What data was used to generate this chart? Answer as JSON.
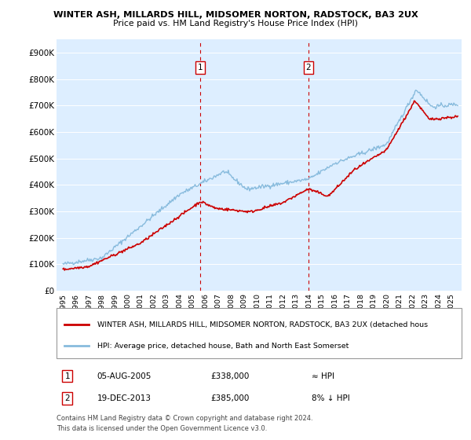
{
  "title1": "WINTER ASH, MILLARDS HILL, MIDSOMER NORTON, RADSTOCK, BA3 2UX",
  "title2": "Price paid vs. HM Land Registry's House Price Index (HPI)",
  "ylim": [
    0,
    950000
  ],
  "yticks": [
    0,
    100000,
    200000,
    300000,
    400000,
    500000,
    600000,
    700000,
    800000,
    900000
  ],
  "ytick_labels": [
    "£0",
    "£100K",
    "£200K",
    "£300K",
    "£400K",
    "£500K",
    "£600K",
    "£700K",
    "£800K",
    "£900K"
  ],
  "legend_line1": "WINTER ASH, MILLARDS HILL, MIDSOMER NORTON, RADSTOCK, BA3 2UX (detached hous",
  "legend_line2": "HPI: Average price, detached house, Bath and North East Somerset",
  "annotation1_date": "05-AUG-2005",
  "annotation1_value": "£338,000",
  "annotation1_hpi": "≈ HPI",
  "annotation2_date": "19-DEC-2013",
  "annotation2_value": "£385,000",
  "annotation2_hpi": "8% ↓ HPI",
  "footnote1": "Contains HM Land Registry data © Crown copyright and database right 2024.",
  "footnote2": "This data is licensed under the Open Government Licence v3.0.",
  "red_color": "#cc0000",
  "blue_color": "#88bbdd",
  "vline_color": "#cc0000",
  "background_color": "#ffffff",
  "plot_bg_color": "#ddeeff",
  "sale1_x": 2005.616,
  "sale2_x": 2013.956,
  "xlim_left": 1994.5,
  "xlim_right": 2025.8
}
